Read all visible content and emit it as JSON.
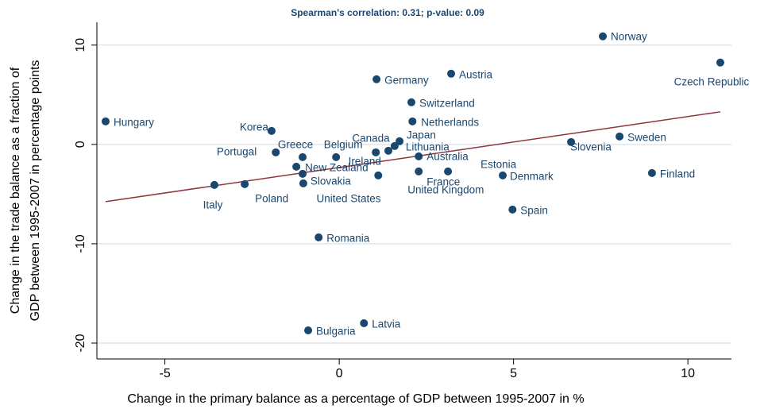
{
  "chart_data": {
    "type": "scatter",
    "title": "Spearman's correlation:  0.31; p-value: 0.09",
    "xlabel": "Change in the primary balance as a percentage of GDP between 1995-2007 in %",
    "ylabel": [
      "Change in the trade balance as a fraction of",
      "GDP between 1995-2007 in percentage points"
    ],
    "xlim": [
      -6.95,
      11.25
    ],
    "ylim": [
      -21.6,
      12.3
    ],
    "xticks": [
      -5,
      0,
      5,
      10
    ],
    "yticks": [
      -20,
      -10,
      0,
      10
    ],
    "grid": true,
    "color": "#1a476f",
    "labels": [
      "Hungary",
      "Korea",
      "Portugal",
      "Greece",
      "Belgium",
      "New Zealand",
      "United States",
      "Slovakia",
      "Italy",
      "Poland",
      "Ireland",
      "Canada",
      "Lithuania",
      "Japan",
      "Australia",
      "United Kingdom",
      "France",
      "Estonia",
      "Denmark",
      "Netherlands",
      "Switzerland",
      "Germany",
      "Austria",
      "Norway",
      "Czech Republic",
      "Slovenia",
      "Sweden",
      "Finland",
      "Spain",
      "Romania",
      "Bulgaria",
      "Latvia"
    ],
    "x": [
      -6.7,
      -1.94,
      -1.82,
      -1.05,
      -0.09,
      -1.23,
      -1.05,
      -1.03,
      -3.58,
      -2.71,
      1.05,
      1.41,
      1.59,
      1.73,
      2.28,
      1.12,
      2.28,
      3.12,
      4.69,
      2.1,
      2.07,
      1.07,
      3.21,
      7.56,
      10.93,
      6.65,
      8.04,
      8.97,
      4.97,
      -0.59,
      -0.89,
      0.71
    ],
    "y": [
      2.32,
      1.36,
      -0.8,
      -1.28,
      -1.28,
      -2.24,
      -2.96,
      -3.92,
      -4.08,
      -4.0,
      -0.8,
      -0.64,
      -0.16,
      0.32,
      -1.2,
      -3.12,
      -2.72,
      -2.72,
      -3.12,
      2.32,
      4.24,
      6.56,
      7.12,
      10.88,
      8.24,
      0.24,
      0.8,
      -2.88,
      -6.56,
      -9.36,
      -18.72,
      -18.0
    ],
    "fit": {
      "color": "#90353b",
      "x": [
        -6.7,
        10.93
      ],
      "y": [
        -5.76,
        3.28
      ]
    }
  }
}
